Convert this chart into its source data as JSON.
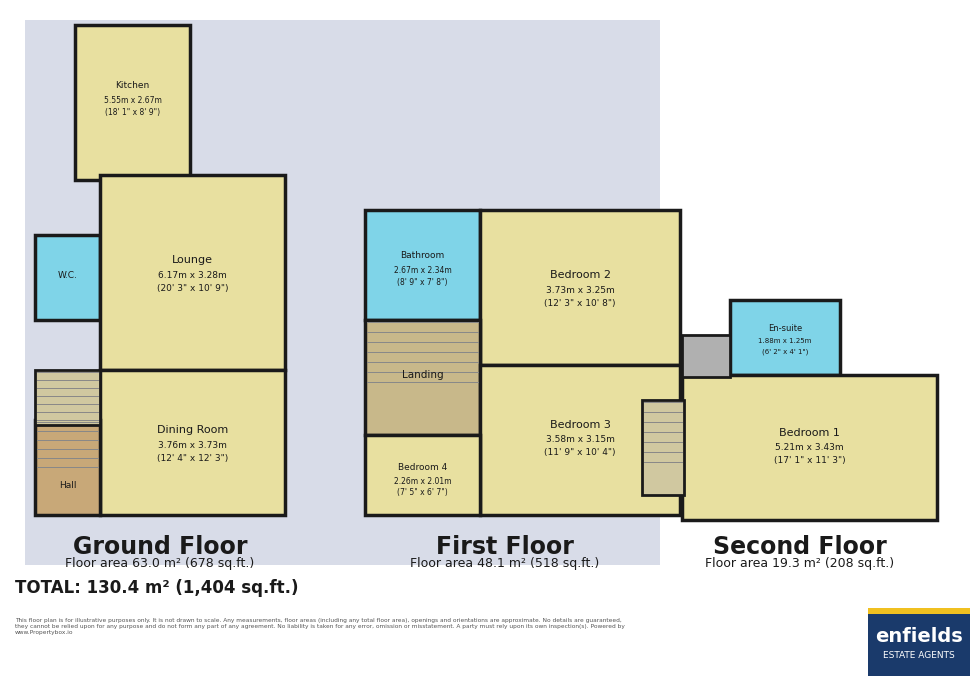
{
  "bg_color": "#ffffff",
  "floor_bg_color": "#d8dce8",
  "wall_color": "#1a1a1a",
  "room_yellow": "#e8e0a0",
  "room_cyan": "#7fd4e8",
  "room_brown": "#c8a878",
  "room_gray": "#b0b0b0",
  "room_darkgray": "#c0c0c0",
  "room_light": "#f0ece0",
  "stair_color": "#d0c8a0",
  "room_landing": "#c8b88a",
  "footer_total": "TOTAL: 130.4 m² (1,404 sq.ft.)",
  "footer_disclaimer": "This floor plan is for illustrative purposes only. It is not drawn to scale. Any measurements, floor areas (including any total floor area), openings and orientations are approximate. No details are guaranteed,\nthey cannot be relied upon for any purpose and do not form any part of any agreement. No liability is taken for any error, omission or misstatement. A party must rely upon its own inspection(s). Powered by\nwww.Propertybox.io",
  "ground_label": "Ground Floor",
  "ground_area": "Floor area 63.0 m² (678 sq.ft.)",
  "first_label": "First Floor",
  "first_area": "Floor area 48.1 m² (518 sq.ft.)",
  "second_label": "Second Floor",
  "second_area": "Floor area 19.3 m² (208 sq.ft.)",
  "enfields_bg": "#1a3a6b",
  "enfields_yellow": "#f0c020",
  "enfields_text_color": "#ffffff",
  "enfields_line1": "enfields",
  "enfields_line2": "ESTATE AGENTS"
}
